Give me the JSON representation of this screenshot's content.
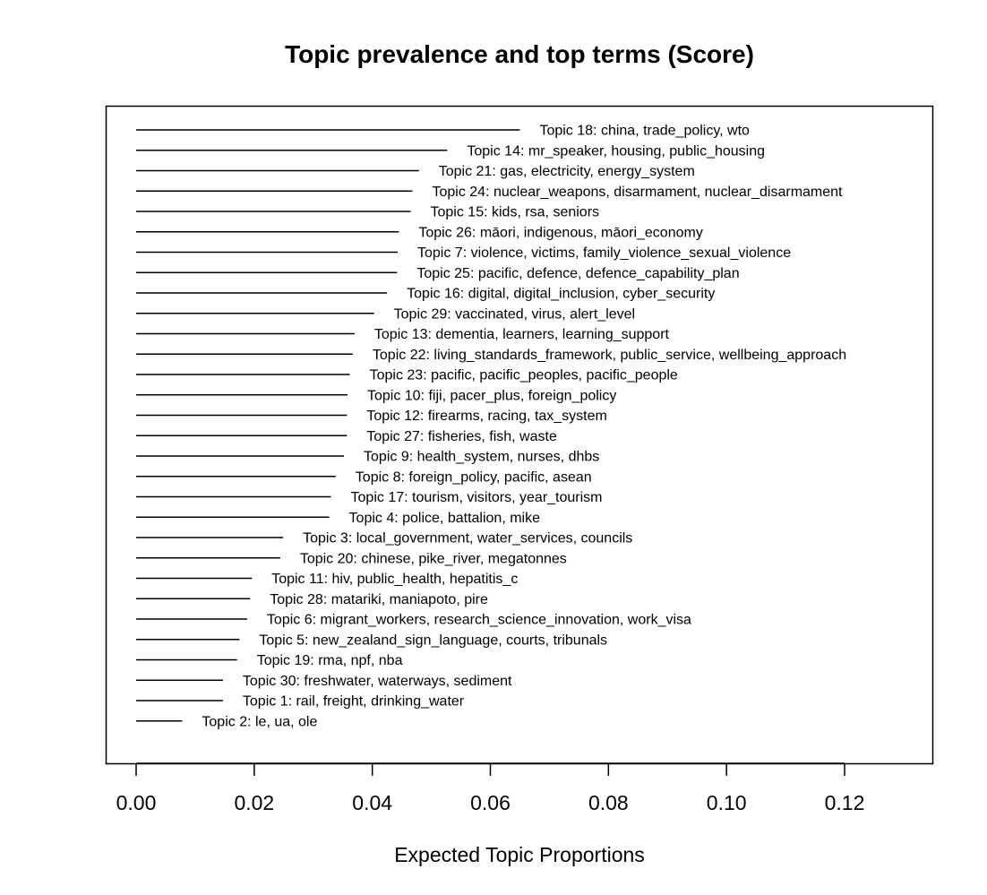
{
  "chart_data": {
    "type": "bar",
    "title": "Topic prevalence and top terms (Score)",
    "xlabel": "Expected Topic Proportions",
    "ylabel": "",
    "xlim": [
      -0.005,
      0.135
    ],
    "xticks": [
      0.0,
      0.02,
      0.04,
      0.06,
      0.08,
      0.1,
      0.12
    ],
    "xtick_labels": [
      "0.00",
      "0.02",
      "0.04",
      "0.06",
      "0.08",
      "0.10",
      "0.12"
    ],
    "grid": false,
    "orientation": "horizontal",
    "categories": [
      "Topic 18: china, trade_policy, wto",
      "Topic 14: mr_speaker, housing, public_housing",
      "Topic 21: gas, electricity, energy_system",
      "Topic 24: nuclear_weapons, disarmament, nuclear_disarmament",
      "Topic 15: kids, rsa, seniors",
      "Topic 26: māori, indigenous, māori_economy",
      "Topic 7: violence, victims, family_violence_sexual_violence",
      "Topic 25: pacific, defence, defence_capability_plan",
      "Topic 16: digital, digital_inclusion, cyber_security",
      "Topic 29: vaccinated, virus, alert_level",
      "Topic 13: dementia, learners, learning_support",
      "Topic 22: living_standards_framework, public_service, wellbeing_approach",
      "Topic 23: pacific, pacific_peoples, pacific_people",
      "Topic 10: fiji, pacer_plus, foreign_policy",
      "Topic 12: firearms, racing, tax_system",
      "Topic 27: fisheries, fish, waste",
      "Topic 9: health_system, nurses, dhbs",
      "Topic 8: foreign_policy, pacific, asean",
      "Topic 17: tourism, visitors, year_tourism",
      "Topic 4: police, battalion, mike",
      "Topic 3: local_government, water_services, councils",
      "Topic 20: chinese, pike_river, megatonnes",
      "Topic 11: hiv, public_health, hepatitis_c",
      "Topic 28: matariki, maniapoto, pire",
      "Topic 6: migrant_workers, research_science_innovation, work_visa",
      "Topic 5: new_zealand_sign_language, courts, tribunals",
      "Topic 19: rma, npf, nba",
      "Topic 30: freshwater, waterways, sediment",
      "Topic 1: rail, freight, drinking_water",
      "Topic 2: le, ua, ole"
    ],
    "values": [
      0.065,
      0.0527,
      0.0479,
      0.0468,
      0.0465,
      0.0445,
      0.0443,
      0.0442,
      0.0425,
      0.0403,
      0.037,
      0.0367,
      0.0362,
      0.0358,
      0.0357,
      0.0357,
      0.0352,
      0.0338,
      0.033,
      0.0327,
      0.0249,
      0.0244,
      0.0196,
      0.0193,
      0.0188,
      0.0175,
      0.0171,
      0.0147,
      0.0147,
      0.0078
    ],
    "line_color": "#000000"
  }
}
